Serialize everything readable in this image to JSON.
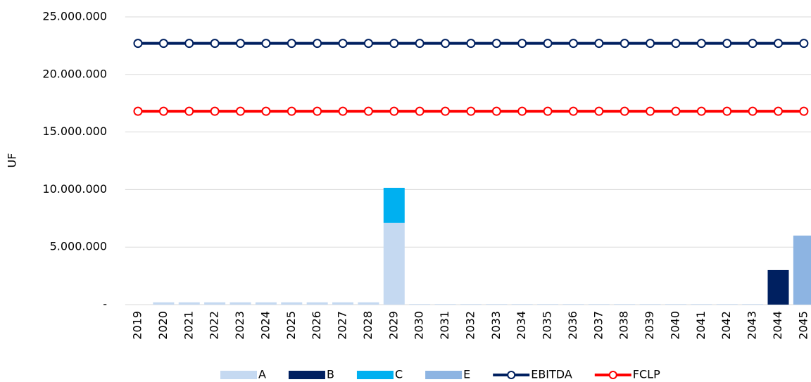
{
  "chart_data": {
    "type": "bar",
    "y_label": "UF",
    "categories": [
      "2019",
      "2020",
      "2021",
      "2022",
      "2023",
      "2024",
      "2025",
      "2026",
      "2027",
      "2028",
      "2029",
      "2030",
      "2031",
      "2032",
      "2033",
      "2034",
      "2035",
      "2036",
      "2037",
      "2038",
      "2039",
      "2040",
      "2041",
      "2042",
      "2043",
      "2044",
      "2045"
    ],
    "series": [
      {
        "name": "A",
        "type": "bar",
        "color": "#c5d9f1",
        "values": [
          null,
          200000,
          200000,
          200000,
          200000,
          200000,
          200000,
          200000,
          200000,
          200000,
          7100000,
          50000,
          50000,
          50000,
          50000,
          50000,
          50000,
          50000,
          50000,
          50000,
          50000,
          50000,
          50000,
          50000,
          50000,
          null,
          null
        ]
      },
      {
        "name": "B",
        "type": "bar",
        "color": "#002060",
        "values": [
          null,
          null,
          null,
          null,
          null,
          null,
          null,
          null,
          null,
          null,
          null,
          null,
          null,
          null,
          null,
          null,
          null,
          null,
          null,
          null,
          null,
          null,
          null,
          null,
          null,
          3000000,
          null
        ]
      },
      {
        "name": "C",
        "type": "bar",
        "color": "#00b0f0",
        "values": [
          null,
          null,
          null,
          null,
          null,
          null,
          null,
          null,
          null,
          null,
          3050000,
          null,
          null,
          null,
          null,
          null,
          null,
          null,
          null,
          null,
          null,
          null,
          null,
          null,
          null,
          null,
          null
        ]
      },
      {
        "name": "E",
        "type": "bar",
        "color": "#8db4e2",
        "values": [
          null,
          null,
          null,
          null,
          null,
          null,
          null,
          null,
          null,
          null,
          null,
          null,
          null,
          null,
          null,
          null,
          null,
          null,
          null,
          null,
          null,
          null,
          null,
          null,
          null,
          null,
          6000000
        ]
      },
      {
        "name": "EBITDA",
        "type": "line",
        "color": "#002060",
        "values": [
          22700000,
          22700000,
          22700000,
          22700000,
          22700000,
          22700000,
          22700000,
          22700000,
          22700000,
          22700000,
          22700000,
          22700000,
          22700000,
          22700000,
          22700000,
          22700000,
          22700000,
          22700000,
          22700000,
          22700000,
          22700000,
          22700000,
          22700000,
          22700000,
          22700000,
          22700000,
          22700000
        ]
      },
      {
        "name": "FCLP",
        "type": "line",
        "color": "#ff0000",
        "values": [
          16800000,
          16800000,
          16800000,
          16800000,
          16800000,
          16800000,
          16800000,
          16800000,
          16800000,
          16800000,
          16800000,
          16800000,
          16800000,
          16800000,
          16800000,
          16800000,
          16800000,
          16800000,
          16800000,
          16800000,
          16800000,
          16800000,
          16800000,
          16800000,
          16800000,
          16800000,
          16800000
        ]
      }
    ],
    "ylim": [
      0,
      25000000
    ],
    "yticks": [
      {
        "value": 0,
        "label": "-"
      },
      {
        "value": 5000000,
        "label": "5.000.000"
      },
      {
        "value": 10000000,
        "label": "10.000.000"
      },
      {
        "value": 15000000,
        "label": "15.000.000"
      },
      {
        "value": 20000000,
        "label": "20.000.000"
      },
      {
        "value": 25000000,
        "label": "25.000.000"
      }
    ],
    "grid": true,
    "stacked": true,
    "legend": "bottom"
  }
}
